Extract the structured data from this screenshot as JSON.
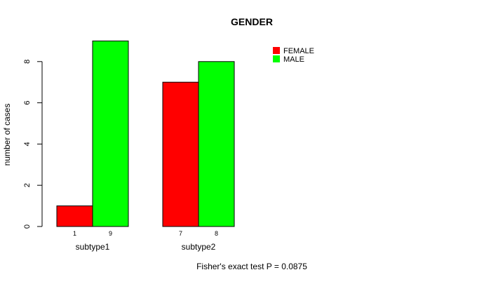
{
  "chart_data": {
    "type": "bar",
    "title": "GENDER",
    "xlabel": "",
    "ylabel": "number of cases",
    "ylim": [
      0,
      9
    ],
    "yticks": [
      0,
      2,
      4,
      6,
      8
    ],
    "categories": [
      "subtype1",
      "subtype2"
    ],
    "series": [
      {
        "name": "FEMALE",
        "color": "#ff0000",
        "values": [
          1,
          7
        ],
        "labels": [
          "1",
          "7"
        ]
      },
      {
        "name": "MALE",
        "color": "#00ff00",
        "values": [
          9,
          8
        ],
        "labels": [
          "9",
          "8"
        ]
      }
    ],
    "legend_position": "top-right",
    "grid": false,
    "footnote": "Fisher's exact test P = 0.0875"
  }
}
